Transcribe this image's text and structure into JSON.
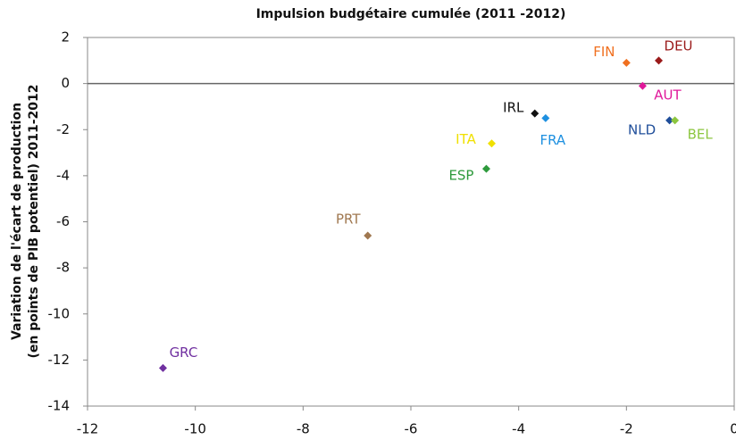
{
  "chart_data": {
    "type": "scatter",
    "title": "Impulsion budgétaire cumulée (2011 -2012)",
    "y_label": [
      "Variation de l'écart de production",
      "(en points de PIB potentiel) 2011-2012"
    ],
    "points": [
      {
        "name": "GRC",
        "x": -10.6,
        "y": -12.35,
        "color": "#7030a0"
      },
      {
        "name": "PRT",
        "x": -6.8,
        "y": -6.6,
        "color": "#a07850"
      },
      {
        "name": "ESP",
        "x": -4.6,
        "y": -3.7,
        "color": "#2e9a3c"
      },
      {
        "name": "ITA",
        "x": -4.5,
        "y": -2.6,
        "color": "#f0e000"
      },
      {
        "name": "IRL",
        "x": -3.7,
        "y": -1.3,
        "color": "#111111"
      },
      {
        "name": "FRA",
        "x": -3.5,
        "y": -1.5,
        "color": "#1e90e0"
      },
      {
        "name": "FIN",
        "x": -2.0,
        "y": 0.9,
        "color": "#f07020"
      },
      {
        "name": "DEU",
        "x": -1.4,
        "y": 1.0,
        "color": "#9a1a1a"
      },
      {
        "name": "AUT",
        "x": -1.7,
        "y": -0.1,
        "color": "#e0189a"
      },
      {
        "name": "NLD",
        "x": -1.2,
        "y": -1.6,
        "color": "#1f4e9a"
      },
      {
        "name": "BEL",
        "x": -1.1,
        "y": -1.6,
        "color": "#8cc63f"
      }
    ],
    "xlim": [
      -12,
      0
    ],
    "xticks": [
      -12,
      -10,
      -8,
      -6,
      -4,
      -2,
      0
    ],
    "ylim": [
      -14,
      2
    ],
    "yticks": [
      2,
      0,
      -2,
      -4,
      -6,
      -8,
      -10,
      -12,
      -14
    ],
    "zero_line": true
  }
}
